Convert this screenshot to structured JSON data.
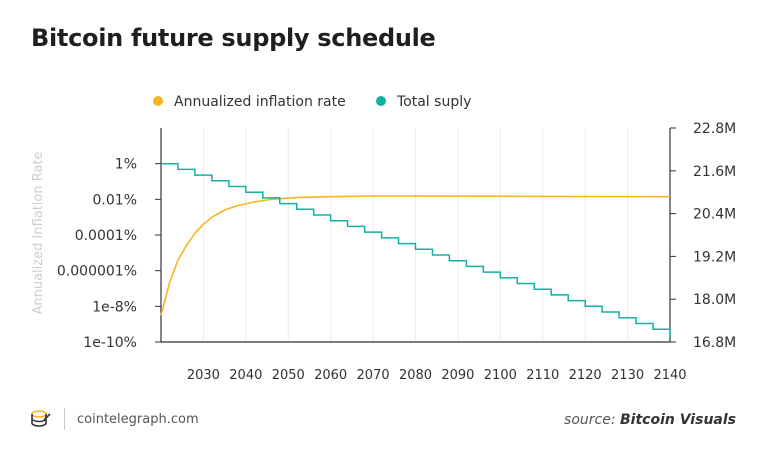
{
  "title": "Bitcoin future supply schedule",
  "footer": {
    "brand": "cointelegraph.com",
    "source_prefix": "source: ",
    "source_name": "Bitcoin Visuals"
  },
  "colors": {
    "inflation": "#f7b522",
    "supply": "#13b1a3",
    "axis": "#333333",
    "grid": "#ececec",
    "ylabel": "#c8cfd6"
  },
  "chart_data": {
    "type": "line",
    "title": "Bitcoin future supply schedule",
    "xlabel": "",
    "xlim": [
      2020,
      2140
    ],
    "x_ticks": [
      2030,
      2040,
      2050,
      2060,
      2070,
      2080,
      2090,
      2100,
      2110,
      2120,
      2130,
      2140
    ],
    "y_left": {
      "label": "Annualized Inflation Rate",
      "scale": "log",
      "lim_log10": [
        -12,
        0
      ],
      "ticks": [
        {
          "label": "1%",
          "log10": -2
        },
        {
          "label": "0.01%",
          "log10": -4
        },
        {
          "label": "0.0001%",
          "log10": -6
        },
        {
          "label": "0.000001%",
          "log10": -8
        },
        {
          "label": "1e-8%",
          "log10": -10
        },
        {
          "label": "1e-10%",
          "log10": -12
        }
      ]
    },
    "y_right": {
      "lim": [
        16.8,
        22.8
      ],
      "ticks": [
        {
          "label": "16.8M",
          "value": 16.8
        },
        {
          "label": "18.0M",
          "value": 18.0
        },
        {
          "label": "19.2M",
          "value": 19.2
        },
        {
          "label": "20.4M",
          "value": 20.4
        },
        {
          "label": "21.6M",
          "value": 21.6
        },
        {
          "label": "22.8M",
          "value": 22.8
        }
      ]
    },
    "legend_position": "top",
    "series": [
      {
        "name": "Annualized inflation rate",
        "axis": "left",
        "x": [
          2020,
          2022,
          2024,
          2026,
          2028,
          2030,
          2032,
          2035,
          2038,
          2042,
          2046,
          2052,
          2060,
          2070,
          2080,
          2100,
          2120,
          2140
        ],
        "log10": [
          -10.5,
          -8.7,
          -7.4,
          -6.6,
          -5.9,
          -5.4,
          -5.0,
          -4.6,
          -4.35,
          -4.15,
          -4.0,
          -3.9,
          -3.85,
          -3.82,
          -3.82,
          -3.83,
          -3.84,
          -3.85
        ]
      },
      {
        "name": "Total suply",
        "axis": "right",
        "step": true,
        "x": [
          2020,
          2024,
          2028,
          2032,
          2036,
          2040,
          2044,
          2048,
          2052,
          2056,
          2060,
          2064,
          2068,
          2072,
          2076,
          2080,
          2084,
          2088,
          2092,
          2096,
          2100,
          2104,
          2108,
          2112,
          2116,
          2120,
          2124,
          2128,
          2132,
          2136,
          2140
        ],
        "values": [
          21.8,
          21.64,
          21.48,
          21.32,
          21.16,
          21.0,
          20.84,
          20.68,
          20.52,
          20.36,
          20.2,
          20.04,
          19.88,
          19.72,
          19.56,
          19.4,
          19.24,
          19.08,
          18.92,
          18.76,
          18.6,
          18.44,
          18.28,
          18.12,
          17.96,
          17.8,
          17.64,
          17.48,
          17.32,
          17.16,
          17.0
        ]
      }
    ]
  }
}
